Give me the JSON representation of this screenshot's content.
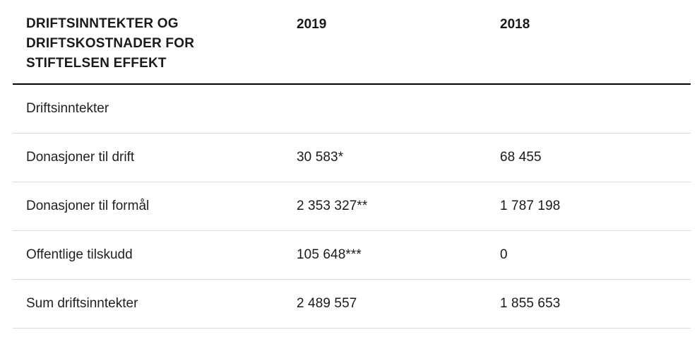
{
  "header": {
    "title": "DRIFTSINNTEKTER OG DRIFTSKOSTNADER FOR STIFTELSEN EFFEKT",
    "col_2019": "2019",
    "col_2018": "2018"
  },
  "section_row": {
    "label": "Driftsinntekter"
  },
  "rows": [
    {
      "label": "Donasjoner til drift",
      "v2019": "30 583*",
      "v2018": "68 455"
    },
    {
      "label": "Donasjoner til formål",
      "v2019": "2 353 327**",
      "v2018": "1 787 198"
    },
    {
      "label": "Offentlige tilskudd",
      "v2019": "105 648***",
      "v2018": "0"
    },
    {
      "label": "Sum driftsinntekter",
      "v2019": "2 489 557",
      "v2018": "1 855 653"
    }
  ],
  "colors": {
    "text": "#1a1a1a",
    "divider": "#dcdcdc",
    "header_rule": "#000000"
  }
}
